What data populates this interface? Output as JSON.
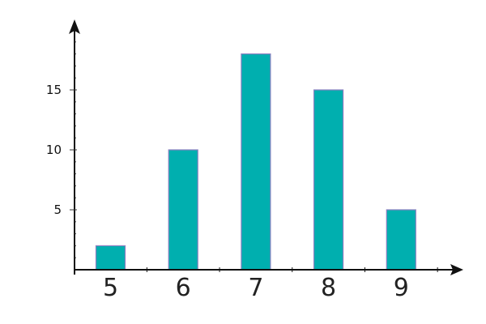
{
  "chart_data": {
    "type": "bar",
    "title": "",
    "xlabel": "",
    "ylabel": "",
    "categories": [
      "5",
      "6",
      "7",
      "8",
      "9"
    ],
    "values": [
      2,
      10,
      18,
      15,
      5
    ],
    "ylim": [
      0,
      20
    ],
    "yticks": [
      5,
      10,
      15
    ],
    "grid": false,
    "colors": {
      "bar": "#00AFAF",
      "bar_edge": "#8A7FC0",
      "axis": "#111111"
    }
  }
}
